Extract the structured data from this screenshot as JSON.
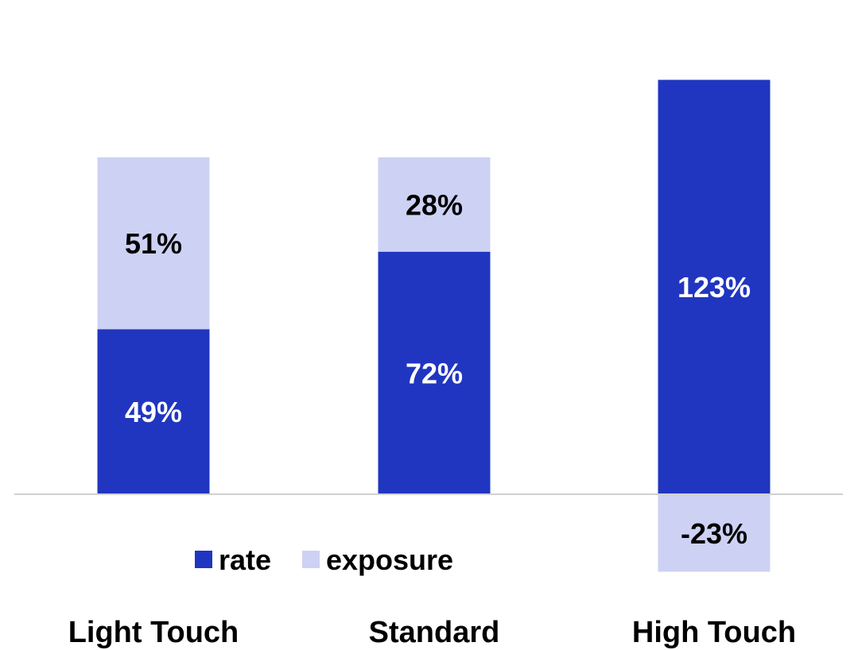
{
  "chart_data": {
    "type": "bar",
    "stacked": true,
    "categories": [
      "Light Touch",
      "Standard",
      "High Touch"
    ],
    "series": [
      {
        "name": "rate",
        "values": [
          49,
          72,
          123
        ],
        "labels": [
          "49%",
          "72%",
          "123%"
        ],
        "color": "#2036C0",
        "label_color": "#ffffff"
      },
      {
        "name": "exposure",
        "values": [
          51,
          28,
          -23
        ],
        "labels": [
          "51%",
          "28%",
          "-23%"
        ],
        "color": "#CDD2F4",
        "label_color": "#000000"
      }
    ],
    "ylim": [
      -26,
      142
    ],
    "grid": false,
    "legend": "bottom-center"
  }
}
